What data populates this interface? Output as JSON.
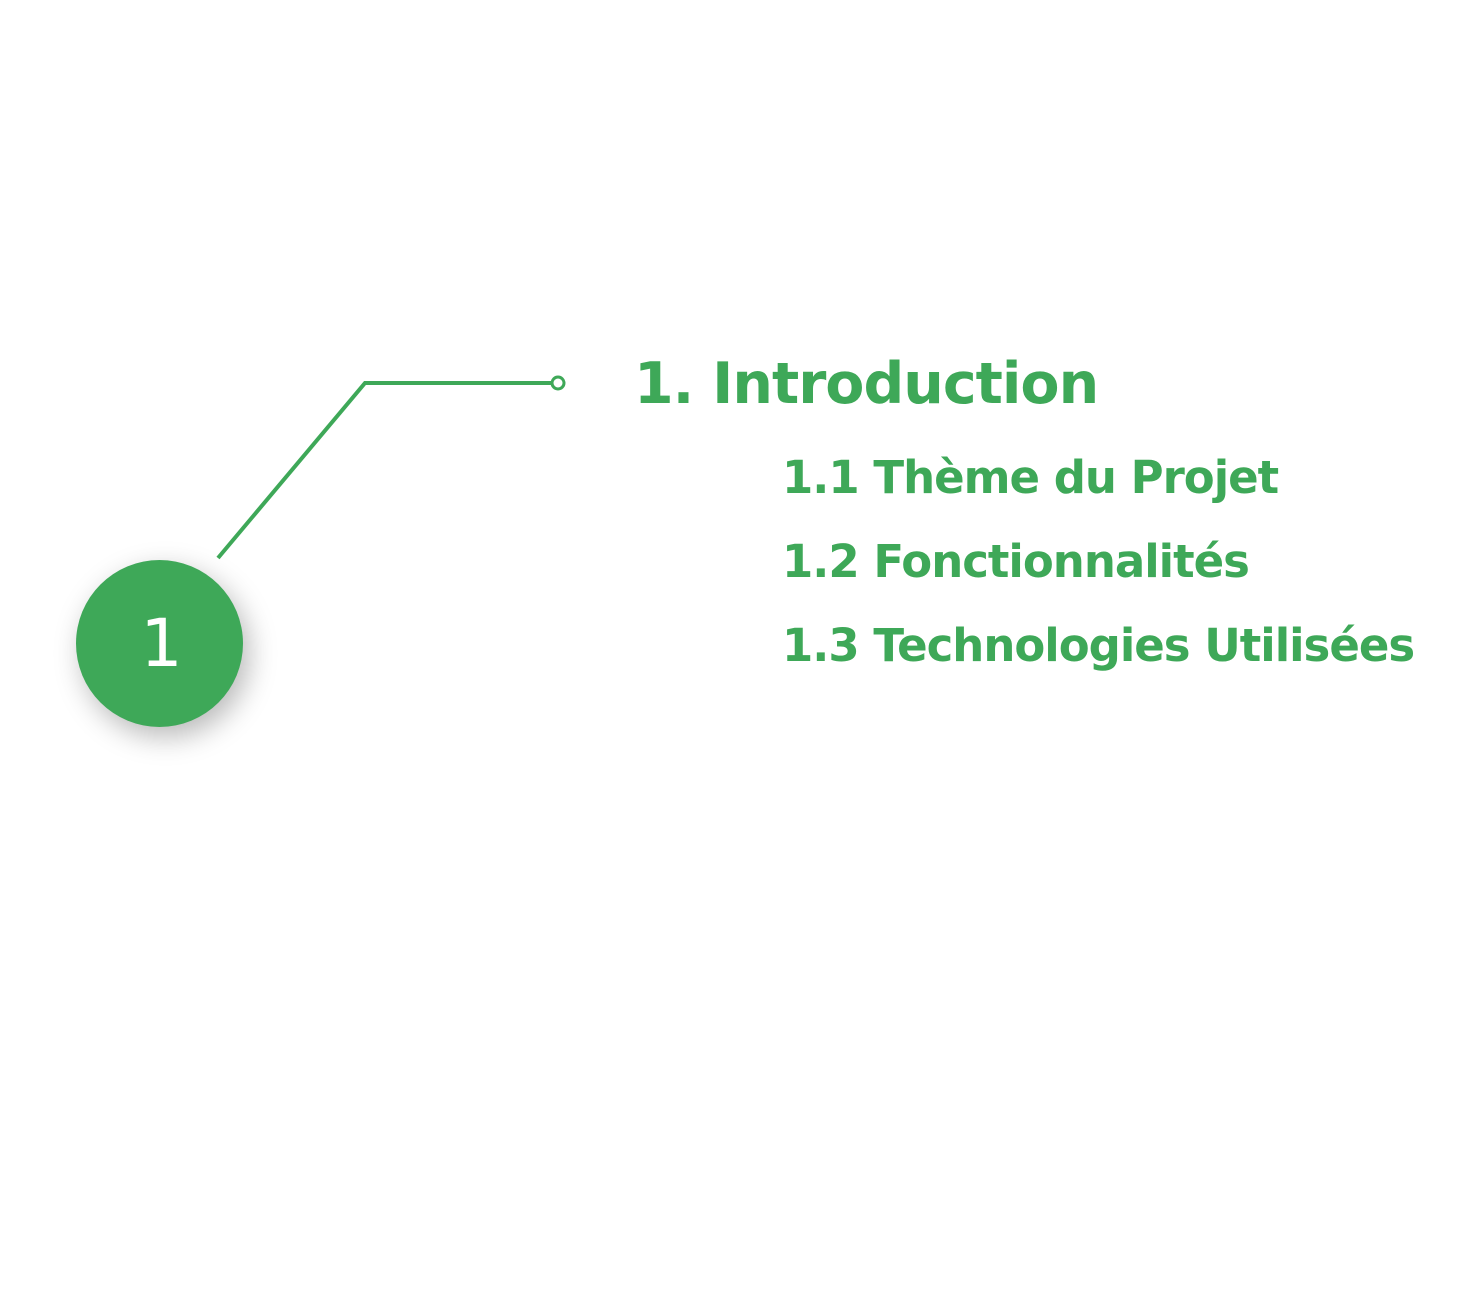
{
  "colors": {
    "accent": "#3ea858",
    "badge_text": "#ffffff",
    "background": "#ffffff"
  },
  "badge": {
    "number": "1"
  },
  "section": {
    "title": "1. Introduction",
    "subsections": [
      "1.1 Thème du Projet",
      "1.2 Fonctionnalités",
      "1.3 Technologies Utilisées"
    ]
  }
}
